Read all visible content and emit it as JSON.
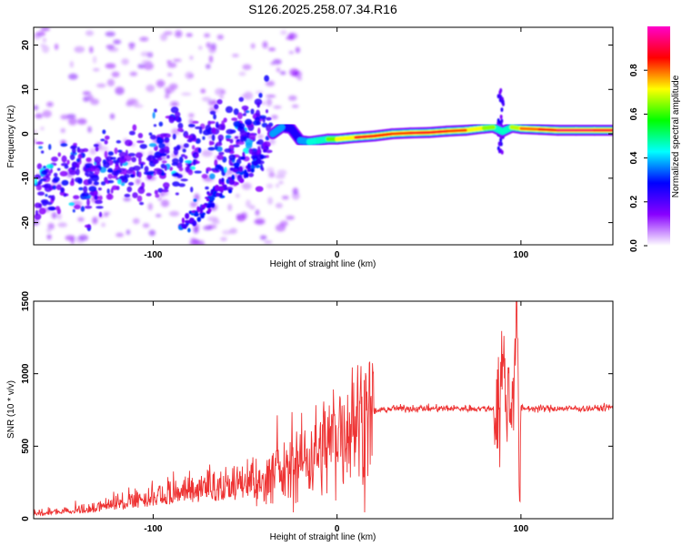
{
  "title": "S126.2025.258.07.34.R16",
  "chart_data": [
    {
      "type": "heatmap",
      "name": "spectrogram",
      "xlabel": "Height of straight line (km)",
      "ylabel": "Frequency (Hz)",
      "xlim": [
        -165,
        150
      ],
      "ylim": [
        -25,
        24
      ],
      "xticks": [
        -100,
        0,
        100
      ],
      "yticks": [
        -20,
        -10,
        0,
        10,
        20
      ],
      "colorbar": {
        "label": "Normalized spectral amplitude",
        "range": [
          0.0,
          1.0
        ],
        "ticks": [
          "0.0",
          "0.2",
          "0.4",
          "0.6",
          "0.8"
        ],
        "colors": [
          "#ffffff",
          "#8800ff",
          "#0000ff",
          "#00ffff",
          "#00ff00",
          "#ffff00",
          "#ff0000",
          "#ff00cc"
        ]
      },
      "ridge": {
        "x": [
          -35,
          -30,
          -25,
          -20,
          -15,
          -10,
          -5,
          0,
          10,
          20,
          30,
          40,
          50,
          60,
          70,
          80,
          85,
          90,
          95,
          100,
          110,
          120,
          130,
          140,
          150
        ],
        "y": [
          0,
          1.5,
          1.2,
          -1.5,
          -1.8,
          -1.5,
          -1.2,
          -1.2,
          -0.8,
          -0.5,
          0,
          0.2,
          0.3,
          0.6,
          0.8,
          1.3,
          1.5,
          0.5,
          1.5,
          1.2,
          1.0,
          0.8,
          0.8,
          0.8,
          0.8
        ],
        "amplitude": [
          0.35,
          0.4,
          0.3,
          0.35,
          0.4,
          0.5,
          0.55,
          0.7,
          0.85,
          0.9,
          0.8,
          0.85,
          0.9,
          0.85,
          0.8,
          0.7,
          0.6,
          0.5,
          0.6,
          0.75,
          0.85,
          0.9,
          0.95,
          0.9,
          0.9
        ]
      }
    },
    {
      "type": "line",
      "name": "snr",
      "xlabel": "Height of straight line (km)",
      "ylabel": "SNR (10 * v/v)",
      "xlim": [
        -165,
        150
      ],
      "ylim": [
        0,
        1500
      ],
      "xticks": [
        -100,
        0,
        100
      ],
      "yticks": [
        0,
        500,
        1000,
        1500
      ],
      "color": "#ee3333",
      "series": [
        {
          "name": "SNR",
          "x": [
            -165,
            -150,
            -130,
            -110,
            -90,
            -70,
            -55,
            -45,
            -40,
            -35,
            -30,
            -25,
            -20,
            -15,
            -10,
            -5,
            0,
            10,
            20,
            30,
            40,
            50,
            60,
            70,
            80,
            85,
            88,
            90,
            92,
            95,
            97,
            98,
            99,
            100,
            105,
            110,
            120,
            130,
            140,
            150
          ],
          "values": [
            20,
            30,
            45,
            70,
            100,
            120,
            130,
            170,
            250,
            330,
            290,
            340,
            400,
            430,
            470,
            520,
            600,
            680,
            740,
            760,
            760,
            760,
            760,
            760,
            760,
            760,
            760,
            1080,
            850,
            760,
            1310,
            1520,
            50,
            760,
            760,
            760,
            760,
            760,
            760,
            770
          ]
        }
      ]
    }
  ]
}
